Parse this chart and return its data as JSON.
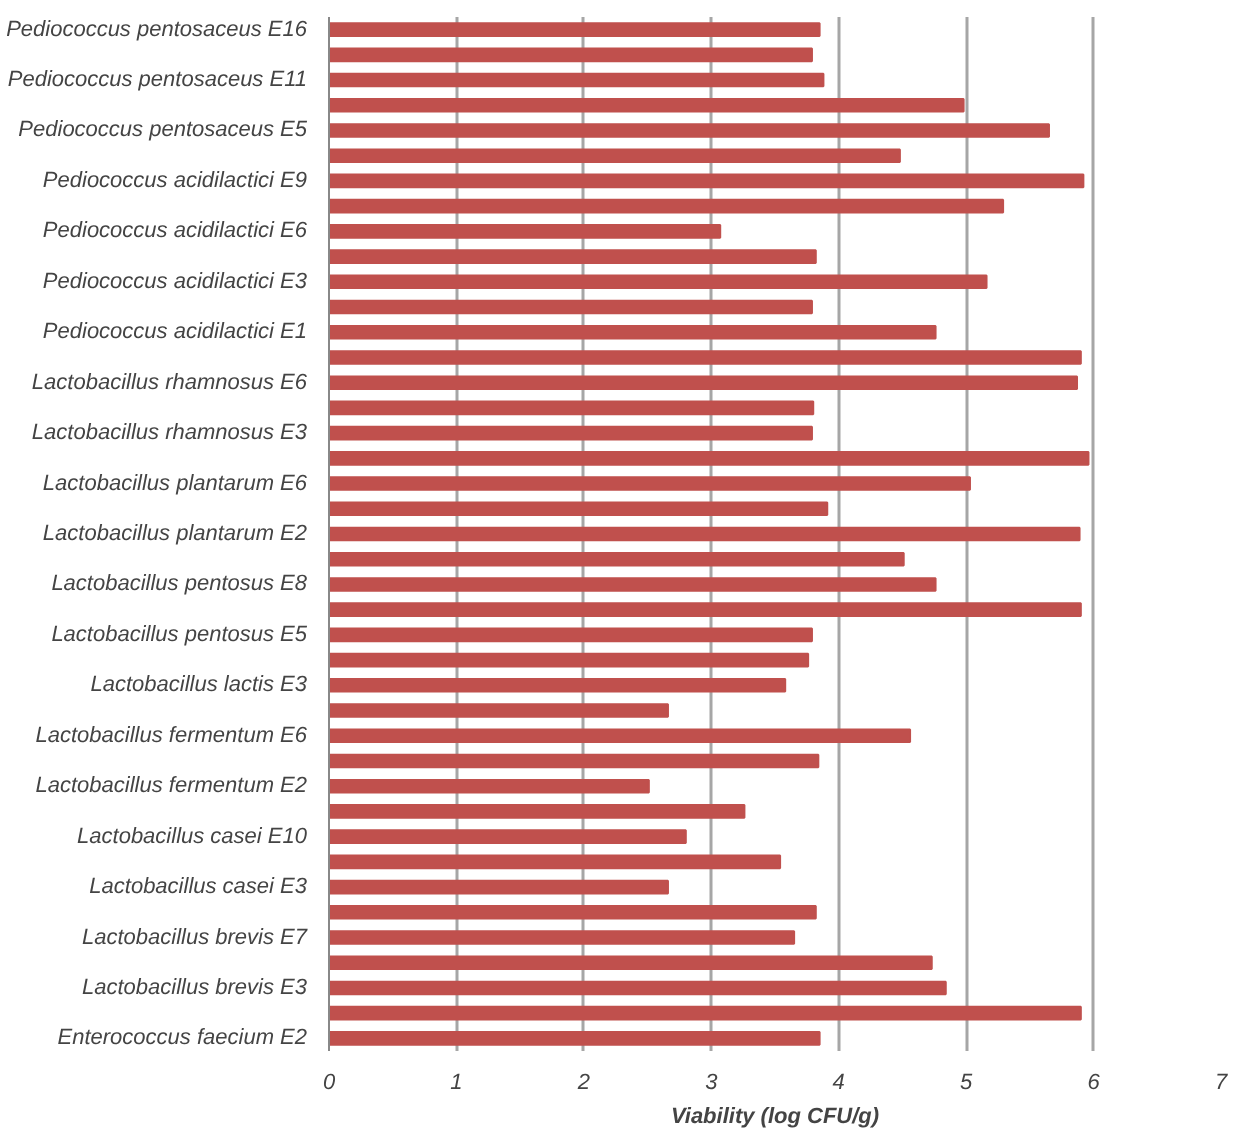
{
  "chart_data": {
    "type": "bar",
    "orientation": "horizontal",
    "xlabel": "Viability (log CFU/g)",
    "categories": [
      "Pediococcus pentosaceus E16",
      null,
      "Pediococcus pentosaceus E11",
      null,
      "Pediococcus pentosaceus E5",
      null,
      "Pediococcus acidilactici E9",
      null,
      "Pediococcus acidilactici E6",
      null,
      "Pediococcus acidilactici E3",
      null,
      "Pediococcus acidilactici E1",
      null,
      "Lactobacillus rhamnosus E6",
      null,
      "Lactobacillus rhamnosus E3",
      null,
      "Lactobacillus plantarum E6",
      null,
      "Lactobacillus plantarum E2",
      null,
      "Lactobacillus pentosus E8",
      null,
      "Lactobacillus pentosus E5",
      null,
      "Lactobacillus lactis E3",
      null,
      "Lactobacillus fermentum E6",
      null,
      "Lactobacillus fermentum E2",
      null,
      "Lactobacillus casei E10",
      null,
      "Lactobacillus casei E3",
      null,
      "Lactobacillus brevis E7",
      null,
      "Lactobacillus brevis E3",
      null,
      "Enterococcus faecium E2"
    ],
    "values": [
      3.85,
      3.79,
      3.88,
      4.98,
      5.65,
      4.48,
      5.92,
      5.29,
      3.07,
      3.82,
      5.16,
      3.79,
      4.76,
      5.9,
      5.87,
      3.8,
      3.79,
      5.96,
      5.03,
      3.91,
      5.89,
      4.51,
      4.76,
      5.9,
      3.79,
      3.76,
      3.58,
      2.66,
      4.56,
      3.84,
      2.51,
      3.26,
      2.8,
      3.54,
      2.66,
      3.82,
      3.65,
      4.73,
      4.84,
      5.9,
      3.85
    ],
    "color": "#c0504d",
    "xlim": [
      0,
      7
    ],
    "xticks": [
      0,
      1,
      2,
      3,
      4,
      5,
      6,
      7
    ],
    "grid": "x"
  }
}
